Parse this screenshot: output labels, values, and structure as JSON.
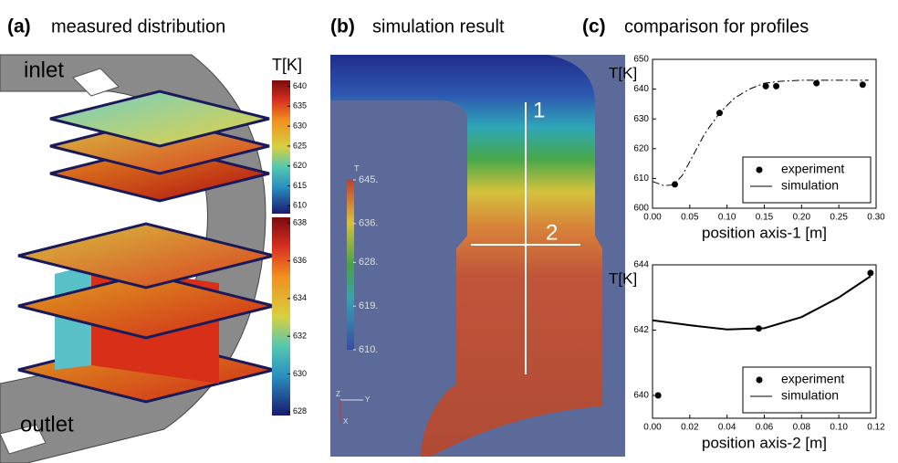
{
  "panels": [
    {
      "label": "(a)",
      "title": "measured distribution"
    },
    {
      "label": "(b)",
      "title": "simulation result"
    },
    {
      "label": "(c)",
      "title": "comparison for profiles"
    }
  ],
  "panel_a": {
    "inlet": "inlet",
    "outlet": "outlet",
    "colorbars": [
      {
        "title": "T[K]",
        "lim": [
          608,
          641.5
        ],
        "ticks": [
          610,
          615,
          620,
          625,
          630,
          635,
          640
        ]
      },
      {
        "lim": [
          627.8,
          638.3
        ],
        "ticks": [
          628,
          630,
          632,
          634,
          636,
          638
        ]
      }
    ]
  },
  "panel_b": {
    "colorbar": {
      "title": "T",
      "lim": [
        610,
        645
      ],
      "ticks": [
        {
          "value": 645,
          "label": "645."
        },
        {
          "value": 636,
          "label": "636."
        },
        {
          "value": 628,
          "label": "628."
        },
        {
          "value": 619,
          "label": "619."
        },
        {
          "value": 610,
          "label": "610."
        }
      ]
    },
    "lines": [
      "1",
      "2"
    ],
    "axes": [
      "Z",
      "Y",
      "X"
    ]
  },
  "chart_data": [
    {
      "type": "line",
      "ylabel": "T[K]",
      "xlabel": "position axis-1 [m]",
      "xlim": [
        0,
        0.3
      ],
      "ylim": [
        600,
        650
      ],
      "xticks": [
        {
          "value": 0,
          "label": "0.00"
        },
        {
          "value": 0.05,
          "label": "0.05"
        },
        {
          "value": 0.1,
          "label": "0.10"
        },
        {
          "value": 0.15,
          "label": "0.15"
        },
        {
          "value": 0.2,
          "label": "0.20"
        },
        {
          "value": 0.25,
          "label": "0.25"
        },
        {
          "value": 0.3,
          "label": "0.30"
        }
      ],
      "yticks": [
        600,
        610,
        620,
        630,
        640,
        650
      ],
      "legend": "lower right",
      "series": [
        {
          "name": "experiment",
          "mode": "markers",
          "color": "#000000",
          "x": [
            0.03,
            0.09,
            0.152,
            0.166,
            0.22,
            0.282
          ],
          "values": [
            608,
            632,
            641,
            641,
            642,
            641.5
          ]
        },
        {
          "name": "simulation",
          "mode": "lines",
          "line_style": "dashdot",
          "color": "#000000",
          "x": [
            0,
            0.015,
            0.028,
            0.04,
            0.055,
            0.07,
            0.09,
            0.11,
            0.13,
            0.15,
            0.17,
            0.2,
            0.25,
            0.29
          ],
          "values": [
            609,
            607.6,
            607.8,
            611,
            618,
            625,
            632,
            637,
            640,
            642,
            642.6,
            643,
            643,
            643
          ]
        }
      ]
    },
    {
      "type": "line",
      "ylabel": "T[K]",
      "xlabel": "position axis-2 [m]",
      "xlim": [
        0,
        0.12
      ],
      "ylim": [
        639.3,
        644
      ],
      "xticks": [
        {
          "value": 0,
          "label": "0.00"
        },
        {
          "value": 0.02,
          "label": "0.02"
        },
        {
          "value": 0.04,
          "label": "0.04"
        },
        {
          "value": 0.06,
          "label": "0.06"
        },
        {
          "value": 0.08,
          "label": "0.08"
        },
        {
          "value": 0.1,
          "label": "0.10"
        },
        {
          "value": 0.12,
          "label": "0.12"
        }
      ],
      "yticks": [
        640,
        642,
        644
      ],
      "legend": "lower right",
      "series": [
        {
          "name": "experiment",
          "mode": "markers",
          "color": "#000000",
          "x": [
            0.003,
            0.057,
            0.117
          ],
          "values": [
            640,
            642.05,
            643.75
          ]
        },
        {
          "name": "simulation",
          "mode": "lines",
          "line_style": "solid",
          "color": "#000000",
          "x": [
            0,
            0.02,
            0.04,
            0.06,
            0.08,
            0.1,
            0.117
          ],
          "values": [
            642.3,
            642.15,
            642.02,
            642.06,
            642.4,
            643,
            643.65
          ]
        }
      ]
    }
  ]
}
